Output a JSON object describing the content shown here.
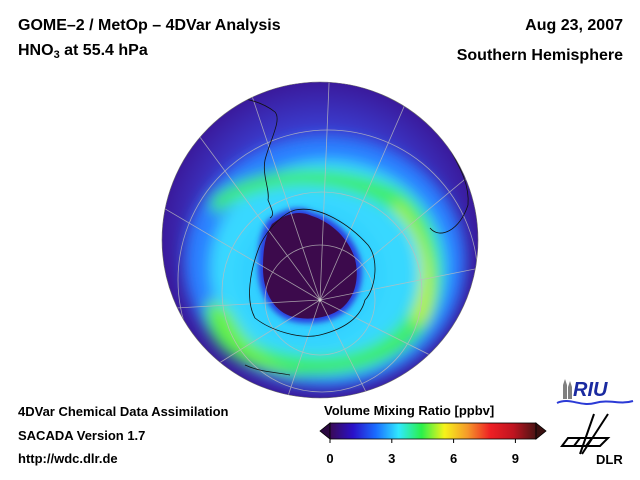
{
  "header": {
    "title": "GOME–2 / MetOp – 4DVar Analysis",
    "species_prefix": "HNO",
    "species_sub": "3",
    "species_suffix": " at 55.4 hPa",
    "date": "Aug 23, 2007",
    "region": "Southern Hemisphere"
  },
  "footer": {
    "line1": "4DVar Chemical Data Assimilation",
    "line2": "SACADA Version 1.7",
    "line3": "http://wdc.dlr.de"
  },
  "colorbar": {
    "title": "Volume Mixing Ratio [ppbv]",
    "range": [
      0,
      10
    ],
    "ticks": [
      "0",
      "3",
      "6",
      "9"
    ],
    "tick_values": [
      0,
      3,
      6,
      9
    ],
    "colors": [
      "#3a0a55",
      "#2a10c8",
      "#1a6cff",
      "#30e8ff",
      "#2af04a",
      "#f6f31a",
      "#f59a2a",
      "#ee1f24",
      "#c01420",
      "#4a1414"
    ]
  },
  "map": {
    "projection": "orthographic south polar",
    "polar_vortex_color": "#3c0a4c",
    "background_color": "#3a1a9c"
  },
  "logos": {
    "riu": "RIU",
    "dlr": "DLR"
  }
}
